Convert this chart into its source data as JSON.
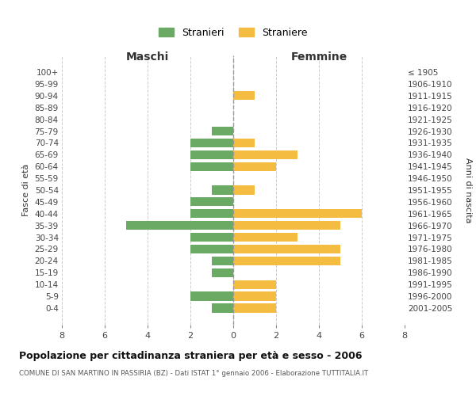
{
  "age_groups": [
    "100+",
    "95-99",
    "90-94",
    "85-89",
    "80-84",
    "75-79",
    "70-74",
    "65-69",
    "60-64",
    "55-59",
    "50-54",
    "45-49",
    "40-44",
    "35-39",
    "30-34",
    "25-29",
    "20-24",
    "15-19",
    "10-14",
    "5-9",
    "0-4"
  ],
  "birth_years": [
    "≤ 1905",
    "1906-1910",
    "1911-1915",
    "1916-1920",
    "1921-1925",
    "1926-1930",
    "1931-1935",
    "1936-1940",
    "1941-1945",
    "1946-1950",
    "1951-1955",
    "1956-1960",
    "1961-1965",
    "1966-1970",
    "1971-1975",
    "1976-1980",
    "1981-1985",
    "1986-1990",
    "1991-1995",
    "1996-2000",
    "2001-2005"
  ],
  "maschi": [
    0,
    0,
    0,
    0,
    0,
    1,
    2,
    2,
    2,
    0,
    1,
    2,
    2,
    5,
    2,
    2,
    1,
    1,
    0,
    2,
    1
  ],
  "femmine": [
    0,
    0,
    1,
    0,
    0,
    0,
    1,
    3,
    2,
    0,
    1,
    0,
    6,
    5,
    3,
    5,
    5,
    0,
    2,
    2,
    2
  ],
  "color_maschi": "#6aaa64",
  "color_femmine": "#f5bc42",
  "title": "Popolazione per cittadinanza straniera per età e sesso - 2006",
  "subtitle": "COMUNE DI SAN MARTINO IN PASSIRIA (BZ) - Dati ISTAT 1° gennaio 2006 - Elaborazione TUTTITALIA.IT",
  "ylabel_left": "Fasce di età",
  "ylabel_right": "Anni di nascita",
  "xlabel_maschi": "Maschi",
  "xlabel_femmine": "Femmine",
  "legend_maschi": "Stranieri",
  "legend_femmine": "Straniere",
  "xlim": 8,
  "background_color": "#ffffff",
  "grid_color": "#cccccc"
}
